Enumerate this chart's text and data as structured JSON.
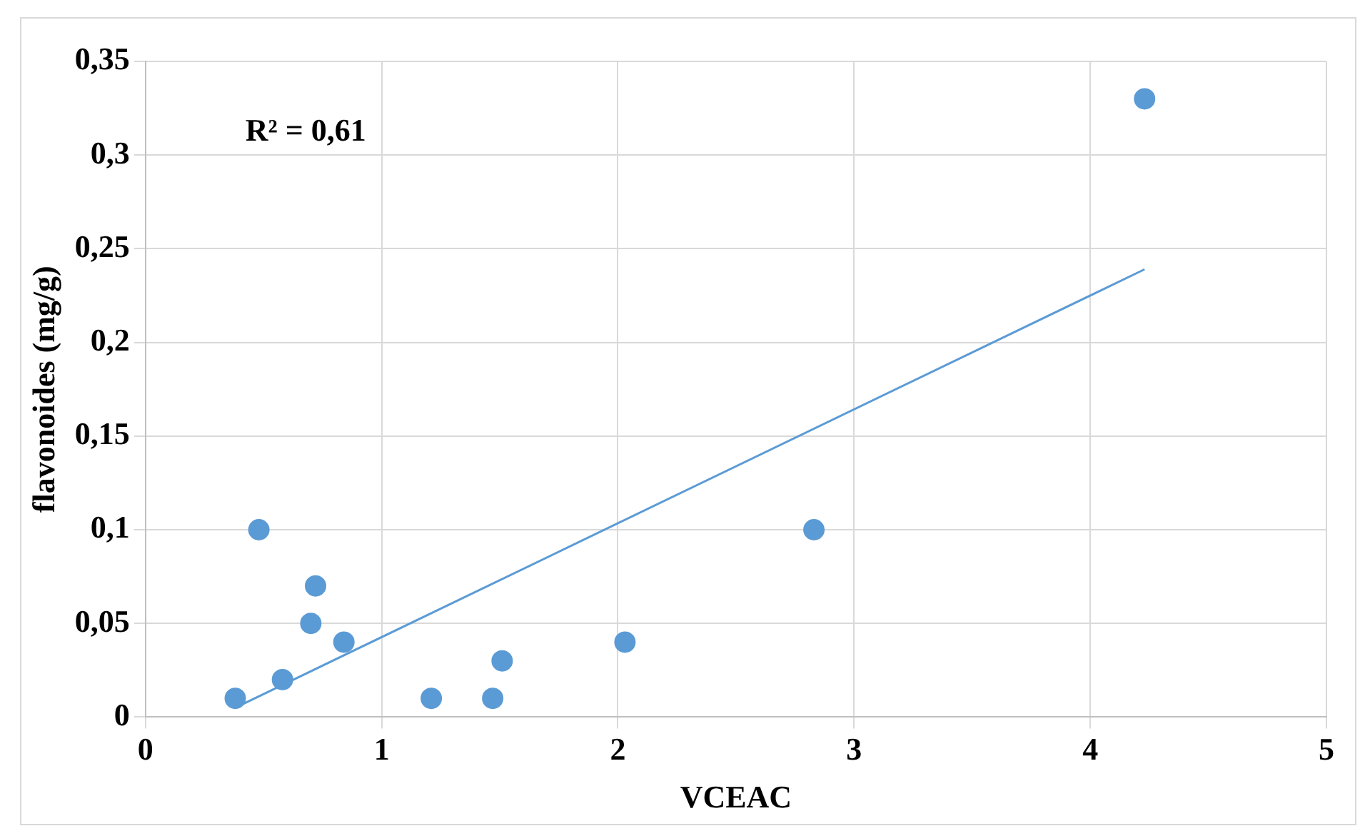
{
  "chart_data": {
    "type": "scatter",
    "xlabel": "VCEAC",
    "ylabel": "flavonoides (mg/g)",
    "annotations": [
      "R² = 0,61"
    ],
    "series": [
      {
        "type": "scatter",
        "marker": "circle",
        "color": "#5b9bd5",
        "x": [
          0.38,
          0.48,
          0.58,
          0.7,
          0.72,
          0.84,
          1.21,
          1.47,
          1.51,
          2.03,
          2.83,
          4.23
        ],
        "values": [
          0.01,
          0.1,
          0.02,
          0.05,
          0.07,
          0.04,
          0.01,
          0.01,
          0.03,
          0.04,
          0.1,
          0.33
        ]
      },
      {
        "type": "line",
        "color": "#5b9bd5",
        "x": [
          0.38,
          4.23
        ],
        "values": [
          0.005,
          0.239
        ]
      }
    ],
    "xlim": [
      0,
      5
    ],
    "xticks": [
      0,
      1,
      2,
      3,
      4,
      5
    ],
    "ylim": [
      0,
      0.35
    ],
    "yticks": [
      0,
      {
        "value": 0.05,
        "label": "0,05"
      },
      {
        "value": 0.1,
        "label": "0,1"
      },
      {
        "value": 0.15,
        "label": "0,15"
      },
      {
        "value": 0.2,
        "label": "0,2"
      },
      {
        "value": 0.25,
        "label": "0,25"
      },
      {
        "value": 0.3,
        "label": "0,3"
      },
      {
        "value": 0.35,
        "label": "0,35"
      }
    ],
    "grid": true,
    "legend": false
  }
}
